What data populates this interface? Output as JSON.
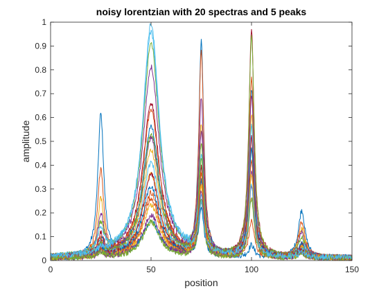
{
  "chart_data": {
    "type": "line",
    "title": "noisy lorentzian with 20 spectras and 5 peaks",
    "xlabel": "position",
    "ylabel": "amplitude",
    "xlim": [
      0,
      150
    ],
    "ylim": [
      0,
      1
    ],
    "x_ticks": [
      0,
      50,
      100,
      150
    ],
    "x_tick_labels": [
      "0",
      "50",
      "100",
      "150"
    ],
    "y_ticks": [
      0,
      0.1,
      0.2,
      0.3,
      0.4,
      0.5,
      0.6,
      0.7,
      0.8,
      0.9,
      1
    ],
    "y_tick_labels": [
      "0",
      "0.1",
      "0.2",
      "0.3",
      "0.4",
      "0.5",
      "0.6",
      "0.7",
      "0.8",
      "0.9",
      "1"
    ],
    "grid": false,
    "legend": "none",
    "x_range": [
      0,
      150
    ],
    "x_step": 0.25,
    "peak_centers": [
      25,
      50,
      75,
      100,
      125
    ],
    "peak_half_widths": [
      1.8,
      5,
      1.5,
      1.6,
      2
    ],
    "noise_amplitude": 0.012,
    "baseline": 0.01,
    "series": [
      {
        "amplitudes": [
          0.6,
          0.15,
          0.9,
          0.05,
          0.2
        ],
        "color": "#0072BD"
      },
      {
        "amplitudes": [
          0.37,
          0.27,
          0.85,
          0.15,
          0.15
        ],
        "color": "#D95319"
      },
      {
        "amplitudes": [
          0.24,
          0.35,
          0.55,
          0.25,
          0.12
        ],
        "color": "#EDB120"
      },
      {
        "amplitudes": [
          0.16,
          0.8,
          0.5,
          0.35,
          0.1
        ],
        "color": "#7E2F8E"
      },
      {
        "amplitudes": [
          0.12,
          0.9,
          0.45,
          0.45,
          0.08
        ],
        "color": "#77AC30"
      },
      {
        "amplitudes": [
          0.1,
          0.98,
          0.4,
          0.55,
          0.06
        ],
        "color": "#4DBEEE"
      },
      {
        "amplitudes": [
          0.08,
          0.65,
          0.35,
          0.95,
          0.05
        ],
        "color": "#A2142F"
      },
      {
        "amplitudes": [
          0.07,
          0.55,
          0.3,
          0.7,
          0.05
        ],
        "color": "#0072BD"
      },
      {
        "amplitudes": [
          0.06,
          0.62,
          0.32,
          0.75,
          0.04
        ],
        "color": "#D95319"
      },
      {
        "amplitudes": [
          0.05,
          0.45,
          0.28,
          0.6,
          0.04
        ],
        "color": "#EDB120"
      },
      {
        "amplitudes": [
          0.05,
          0.5,
          0.65,
          0.68,
          0.04
        ],
        "color": "#7E2F8E"
      },
      {
        "amplitudes": [
          0.04,
          0.52,
          0.4,
          0.93,
          0.03
        ],
        "color": "#77AC30"
      },
      {
        "amplitudes": [
          0.04,
          0.4,
          0.25,
          0.55,
          0.03
        ],
        "color": "#4DBEEE"
      },
      {
        "amplitudes": [
          0.03,
          0.35,
          0.22,
          0.5,
          0.03
        ],
        "color": "#A2142F"
      },
      {
        "amplitudes": [
          0.03,
          0.3,
          0.2,
          0.45,
          0.02
        ],
        "color": "#0072BD"
      },
      {
        "amplitudes": [
          0.03,
          0.25,
          0.35,
          0.4,
          0.02
        ],
        "color": "#D95319"
      },
      {
        "amplitudes": [
          0.02,
          0.22,
          0.3,
          0.35,
          0.02
        ],
        "color": "#EDB120"
      },
      {
        "amplitudes": [
          0.02,
          0.18,
          0.28,
          0.3,
          0.02
        ],
        "color": "#7E2F8E"
      },
      {
        "amplitudes": [
          0.02,
          0.15,
          0.25,
          0.25,
          0.02
        ],
        "color": "#77AC30"
      },
      {
        "amplitudes": [
          0.02,
          0.95,
          0.2,
          0.3,
          0.02
        ],
        "color": "#4DBEEE"
      }
    ]
  }
}
